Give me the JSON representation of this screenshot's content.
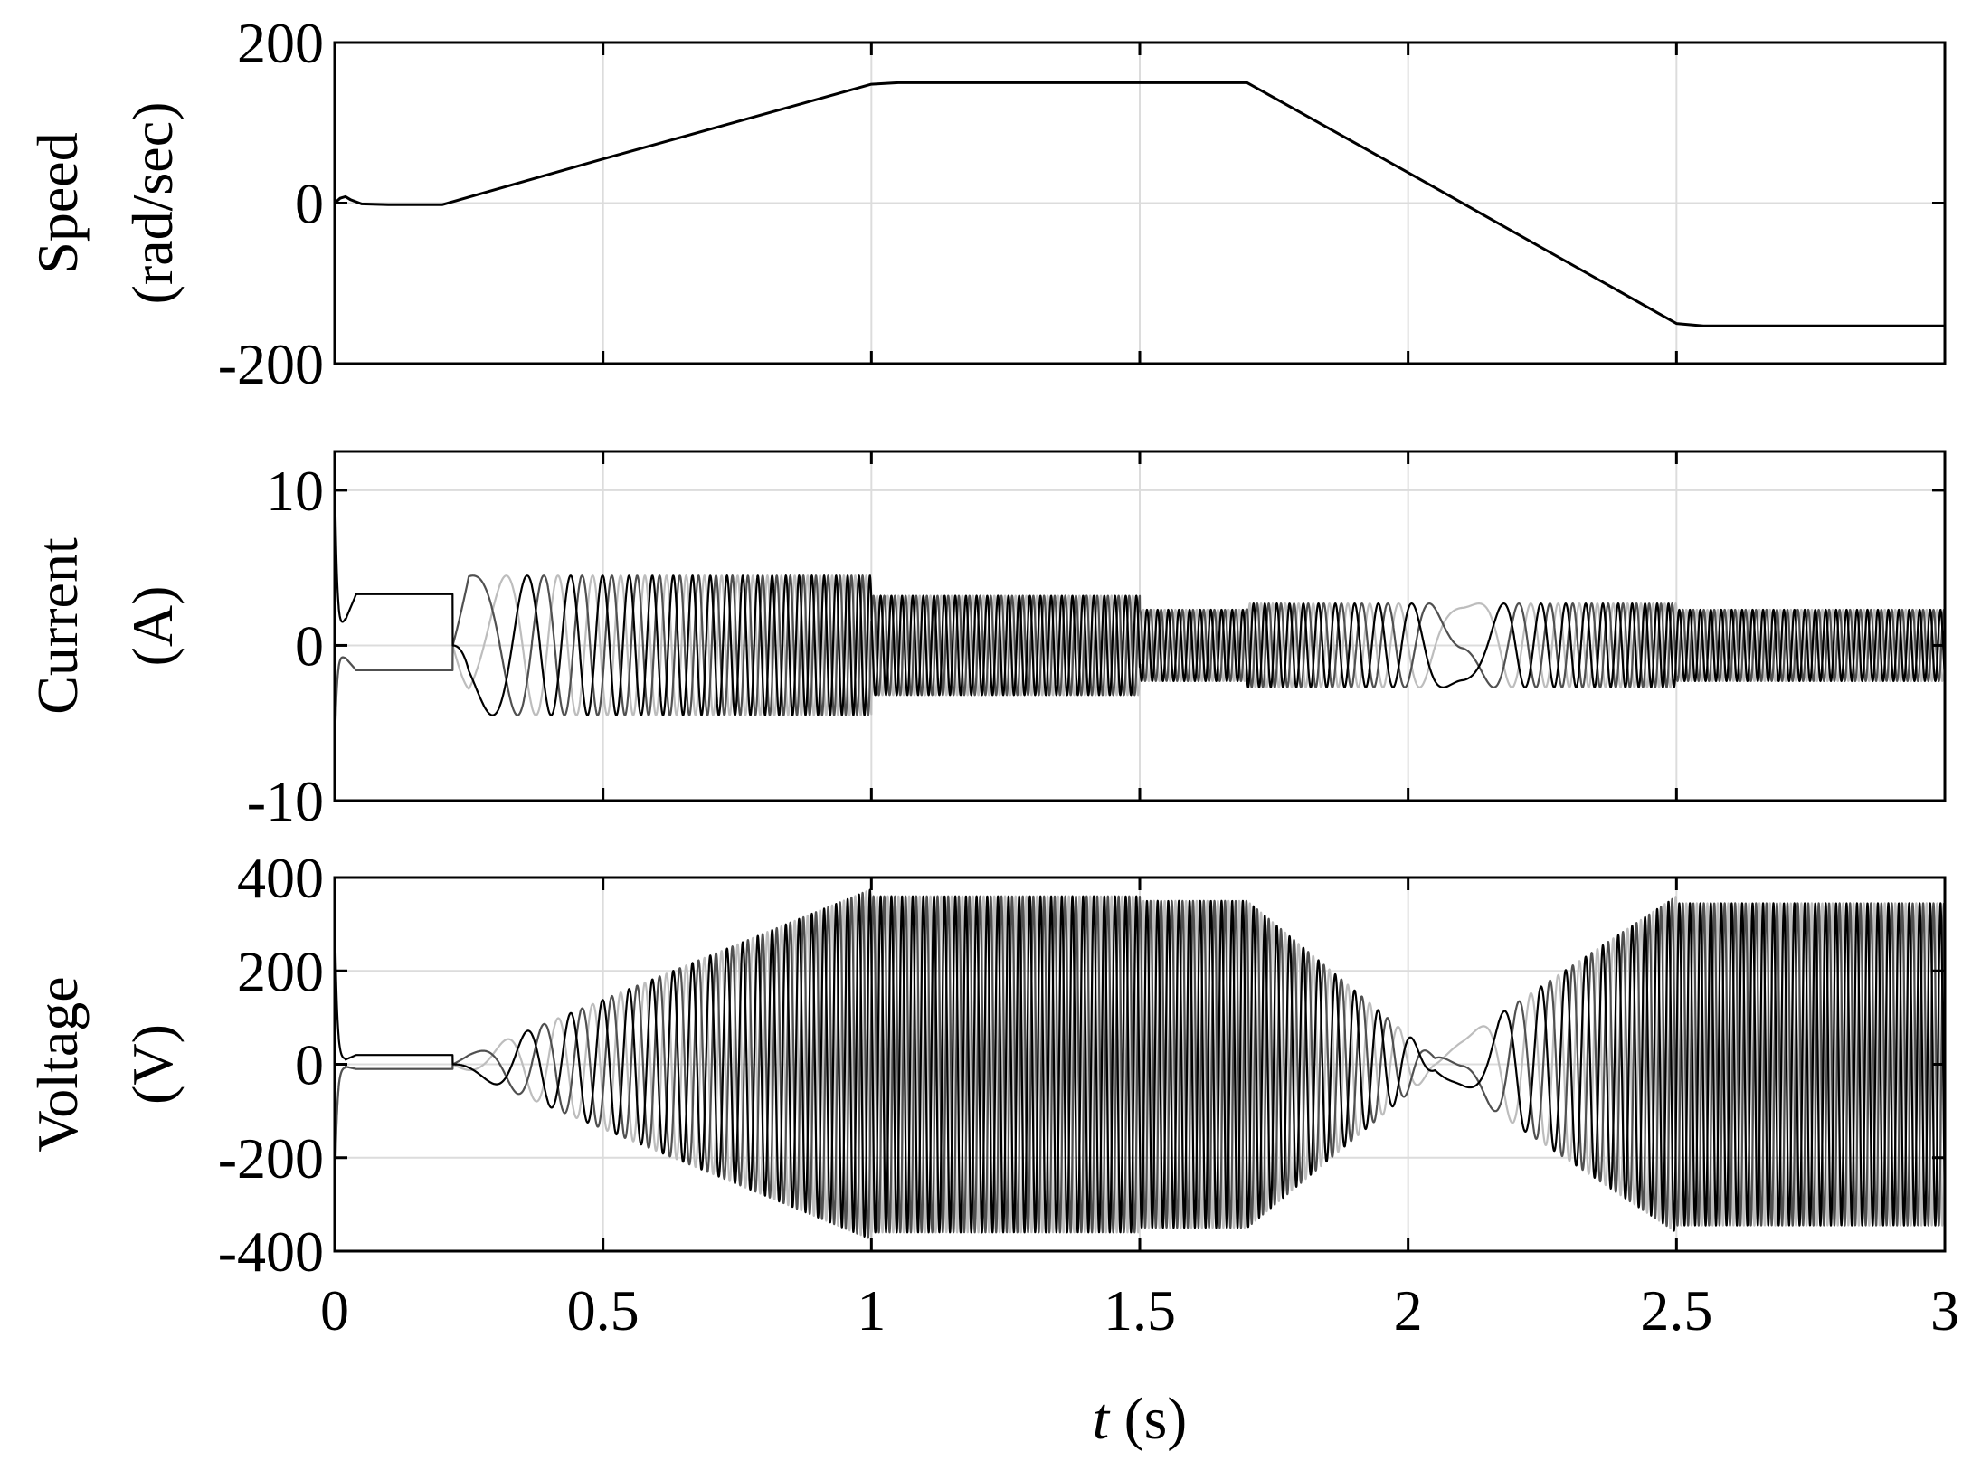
{
  "chart_data": [
    {
      "type": "line",
      "ylabel_line1": "Speed",
      "ylabel_line2": "(rad/sec)",
      "xlim": [
        0,
        3
      ],
      "ylim": [
        -200,
        200
      ],
      "yticks": [
        -200,
        0,
        200
      ],
      "ytick_labels": [
        "-200",
        "0",
        "200"
      ],
      "grid": true,
      "series": [
        {
          "color": "#000000",
          "x": [
            0,
            0.01,
            0.02,
            0.03,
            0.05,
            0.1,
            0.15,
            0.2,
            0.5,
            1.0,
            1.05,
            1.5,
            1.7,
            2.0,
            2.5,
            2.55,
            3.0
          ],
          "values": [
            0,
            6,
            8,
            4,
            -1,
            -2,
            -2,
            -2,
            55,
            148,
            150,
            150,
            150,
            38,
            -150,
            -153,
            -153
          ]
        }
      ]
    },
    {
      "type": "line",
      "ylabel_line1": "Current",
      "ylabel_line2": "(A)",
      "xlim": [
        0,
        3
      ],
      "ylim": [
        -10,
        12.5
      ],
      "yticks": [
        -10,
        0,
        10
      ],
      "ytick_labels": [
        "-10",
        "0",
        "10"
      ],
      "grid": true,
      "series_description": "three-phase stator currents (black, dark gray, light gray), ~4.5 A to 1 s, ~3.2 A to 1.5 s, ~2.3 A to 1.7 s, ~2.7 A to 2.5 s, ~2.3 A to 3 s",
      "envelope_x": [
        0,
        0.22,
        0.25,
        1.0,
        1.0,
        1.5,
        1.5,
        1.7,
        1.7,
        2.5,
        2.5,
        3.0
      ],
      "envelope_amp": [
        0,
        0,
        4.5,
        4.5,
        3.2,
        3.2,
        2.3,
        2.3,
        2.7,
        2.7,
        2.3,
        2.3
      ],
      "series": [
        {
          "color": "#000000"
        },
        {
          "color": "#505050"
        },
        {
          "color": "#bdbdbd"
        }
      ]
    },
    {
      "type": "line",
      "ylabel_line1": "Voltage",
      "ylabel_line2": "(V)",
      "xlim": [
        0,
        3
      ],
      "ylim": [
        -400,
        400
      ],
      "yticks": [
        -400,
        -200,
        0,
        200,
        400
      ],
      "ytick_labels": [
        "-400",
        "-200",
        "0",
        "200",
        "400"
      ],
      "grid": true,
      "series_description": "three-phase voltages, amplitude ramping 0 to ~370 V by 1 s, ~360 V to 1.7 s, ramping down to ~0 near 2.05 s, up to ~360 V by 2.5 s, ~345 V to 3 s",
      "envelope_x": [
        0,
        0.22,
        0.25,
        1.0,
        1.0,
        1.5,
        1.5,
        1.7,
        2.05,
        2.5,
        2.5,
        3.0
      ],
      "envelope_amp": [
        0,
        0,
        20,
        375,
        360,
        360,
        350,
        350,
        15,
        360,
        345,
        345
      ],
      "series": [
        {
          "color": "#000000"
        },
        {
          "color": "#505050"
        },
        {
          "color": "#bdbdbd"
        }
      ]
    }
  ],
  "xaxis": {
    "xlim": [
      0,
      3
    ],
    "xticks": [
      0,
      0.5,
      1,
      1.5,
      2,
      2.5,
      3
    ],
    "xtick_labels": [
      "0",
      "0.5",
      "1",
      "1.5",
      "2",
      "2.5",
      "3"
    ],
    "xlabel_var": "t",
    "xlabel_unit": " (s)"
  }
}
